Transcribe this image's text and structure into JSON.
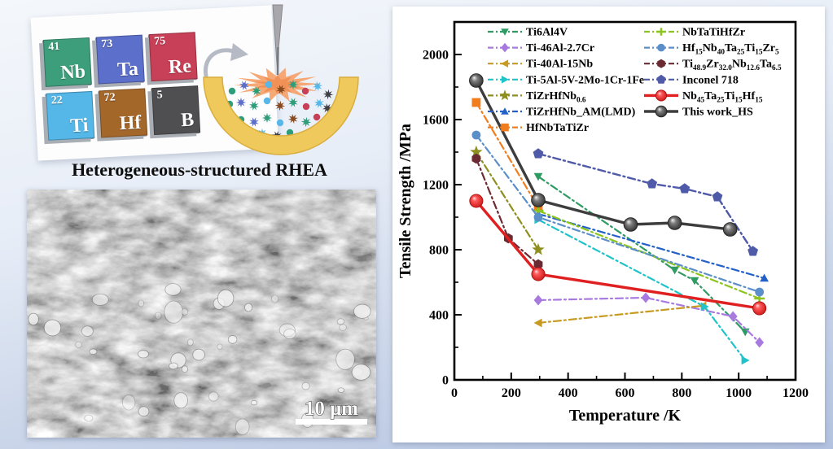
{
  "illustration": {
    "caption": "Heterogeneous-structured RHEA",
    "elements": [
      {
        "number": "41",
        "symbol": "Nb",
        "color": "#3d9e7c"
      },
      {
        "number": "73",
        "symbol": "Ta",
        "color": "#5c6fca"
      },
      {
        "number": "75",
        "symbol": "Re",
        "color": "#c84057"
      },
      {
        "number": "22",
        "symbol": "Ti",
        "color": "#54b7e8"
      },
      {
        "number": "72",
        "symbol": "Hf",
        "color": "#a4672a"
      },
      {
        "number": "5",
        "symbol": "B",
        "color": "#4f4f52"
      }
    ],
    "crucible_color": "#f0c95c",
    "spark_color": "#f5a36e",
    "needle_color": "#a8a8ac",
    "particle_colors": [
      "#2f9d7a",
      "#5b6fca",
      "#2f9d7a",
      "#57b7e8",
      "#8a4a1f",
      "#2f9d7a",
      "#c84057",
      "#57b7e8",
      "#3f4046"
    ]
  },
  "micrograph": {
    "scale_label": "10 μm"
  },
  "chart_data": {
    "type": "line",
    "title": "",
    "xlabel": "Temperature /K",
    "ylabel": "Tensile Strength /MPa",
    "xlim": [
      0,
      1200
    ],
    "ylim": [
      0,
      2200
    ],
    "x_major_ticks": [
      0,
      200,
      400,
      600,
      800,
      1000,
      1200
    ],
    "x_minor_ticks": [
      100,
      300,
      500,
      700,
      900,
      1100
    ],
    "y_major_ticks": [
      0,
      400,
      800,
      1200,
      1600,
      2000
    ],
    "y_minor_ticks": [
      200,
      600,
      1000,
      1400,
      1800
    ],
    "grid": false,
    "legend_position": "top-inside, two columns",
    "series": [
      {
        "name": "Ti6Al4V",
        "color": "#2e9b63",
        "marker": "triangle-down",
        "line": "dashdot",
        "points": [
          [
            295,
            1250
          ],
          [
            775,
            675
          ],
          [
            845,
            610
          ],
          [
            1023,
            295
          ]
        ]
      },
      {
        "name": "Ti-46Al-2.7Cr",
        "color": "#a87ae0",
        "marker": "diamond",
        "line": "dashdot",
        "points": [
          [
            295,
            490
          ],
          [
            673,
            505
          ],
          [
            980,
            390
          ],
          [
            1073,
            230
          ]
        ]
      },
      {
        "name": "Ti-40Al-15Nb",
        "color": "#c79a22",
        "marker": "triangle-left",
        "line": "dashdot",
        "points": [
          [
            295,
            350
          ],
          [
            873,
            455
          ]
        ]
      },
      {
        "name": "Ti-5Al-5V-2Mo-1Cr-1Fe",
        "color": "#1fc3c9",
        "marker": "triangle-right",
        "line": "dashdot",
        "points": [
          [
            295,
            985
          ],
          [
            880,
            450
          ],
          [
            1023,
            120
          ]
        ]
      },
      {
        "name": "TiZrHfNb_{0.6}",
        "color": "#8f8f1f",
        "marker": "star",
        "line": "dashdot",
        "points": [
          [
            77,
            1400
          ],
          [
            295,
            800
          ]
        ]
      },
      {
        "name": "TiZrHfNb_AM(LMD)",
        "color": "#2361c9",
        "marker": "triangle-up",
        "line": "dashdot",
        "points": [
          [
            295,
            1020
          ],
          [
            1090,
            625
          ]
        ]
      },
      {
        "name": "HfNbTaTiZr",
        "color": "#f07d1e",
        "marker": "square",
        "line": "dashdot",
        "points": [
          [
            77,
            1705
          ],
          [
            295,
            1060
          ]
        ]
      },
      {
        "name": "NbTaTiHfZr",
        "color": "#8cc51e",
        "marker": "plus",
        "line": "dashdot",
        "points": [
          [
            295,
            1040
          ],
          [
            1073,
            500
          ]
        ]
      },
      {
        "name": "Hf_{15}Nb_{40}Ta_{25}Ti_{15}Zr_{5}",
        "color": "#5b8fc9",
        "marker": "circle",
        "line": "dashdot",
        "points": [
          [
            77,
            1505
          ],
          [
            295,
            1000
          ],
          [
            1073,
            540
          ]
        ]
      },
      {
        "name": "Ti_{48.9}Zr_{32.0}Nb_{12.6}Ta_{6.5}",
        "color": "#6b2a32",
        "marker": "hexagon",
        "line": "dashdot",
        "points": [
          [
            77,
            1360
          ],
          [
            190,
            870
          ],
          [
            295,
            710
          ]
        ]
      },
      {
        "name": "Inconel 718",
        "color": "#4f5aa8",
        "marker": "pentagon",
        "line": "dashdot",
        "points": [
          [
            295,
            1390
          ],
          [
            695,
            1205
          ],
          [
            810,
            1175
          ],
          [
            925,
            1125
          ],
          [
            1050,
            790
          ]
        ]
      },
      {
        "name": "Nb_{45}Ta_{25}Ti_{15}Hf_{15}",
        "color": "#e02020",
        "marker": "sphere-red",
        "line": "solid",
        "points": [
          [
            77,
            1100
          ],
          [
            295,
            650
          ],
          [
            1073,
            440
          ]
        ]
      },
      {
        "name": "This work_HS",
        "color": "#3d3d3d",
        "marker": "sphere-dark",
        "line": "solid",
        "points": [
          [
            77,
            1840
          ],
          [
            295,
            1105
          ],
          [
            620,
            955
          ],
          [
            775,
            965
          ],
          [
            970,
            925
          ]
        ]
      }
    ]
  }
}
